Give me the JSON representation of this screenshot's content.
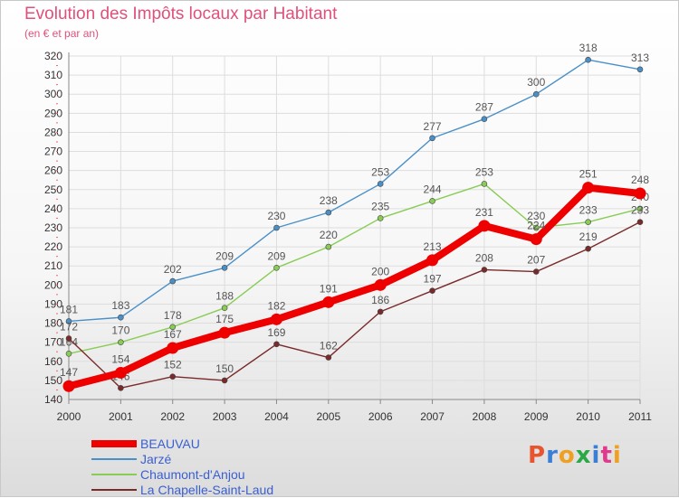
{
  "title": "Evolution des Impôts locaux par Habitant",
  "subtitle": "(en € et par an)",
  "brand": "Proxiti",
  "colors": {
    "title": "#e0507a",
    "brand_letters": [
      "#e8542f",
      "#3a7fd5",
      "#f0a020",
      "#2aa845",
      "#3a7fd5",
      "#e03a8c",
      "#f0a020"
    ]
  },
  "chart_data": {
    "type": "line",
    "title": "Evolution des Impôts locaux par Habitant",
    "subtitle": "(en € et par an)",
    "xlabel": "",
    "ylabel": "",
    "x": [
      "2000",
      "2001",
      "2002",
      "2003",
      "2004",
      "2005",
      "2006",
      "2007",
      "2008",
      "2009",
      "2010",
      "2011"
    ],
    "ylim": [
      140,
      320
    ],
    "yticks": [
      140,
      150,
      160,
      170,
      180,
      190,
      200,
      210,
      220,
      230,
      240,
      250,
      260,
      270,
      280,
      290,
      300,
      310,
      320
    ],
    "grid": true,
    "legend_position": "bottom-left",
    "series": [
      {
        "name": "Jarzé",
        "color": "#4a90c8",
        "values": [
          181,
          183,
          202,
          209,
          230,
          238,
          253,
          277,
          287,
          300,
          318,
          313
        ]
      },
      {
        "name": "Chaumont-d'Anjou",
        "color": "#88cc55",
        "values": [
          164,
          170,
          178,
          188,
          209,
          220,
          235,
          244,
          253,
          230,
          233,
          240
        ]
      },
      {
        "name": "La Chapelle-Saint-Laud",
        "color": "#7a2a2a",
        "values": [
          172,
          146,
          152,
          150,
          169,
          162,
          186,
          197,
          208,
          207,
          219,
          233
        ]
      },
      {
        "name": "BEAUVAU",
        "color": "#ee0000",
        "values": [
          147,
          154,
          167,
          175,
          182,
          191,
          200,
          213,
          231,
          224,
          251,
          248
        ]
      }
    ],
    "legend_order": [
      "BEAUVAU",
      "Jarzé",
      "Chaumont-d'Anjou",
      "La Chapelle-Saint-Laud"
    ]
  }
}
